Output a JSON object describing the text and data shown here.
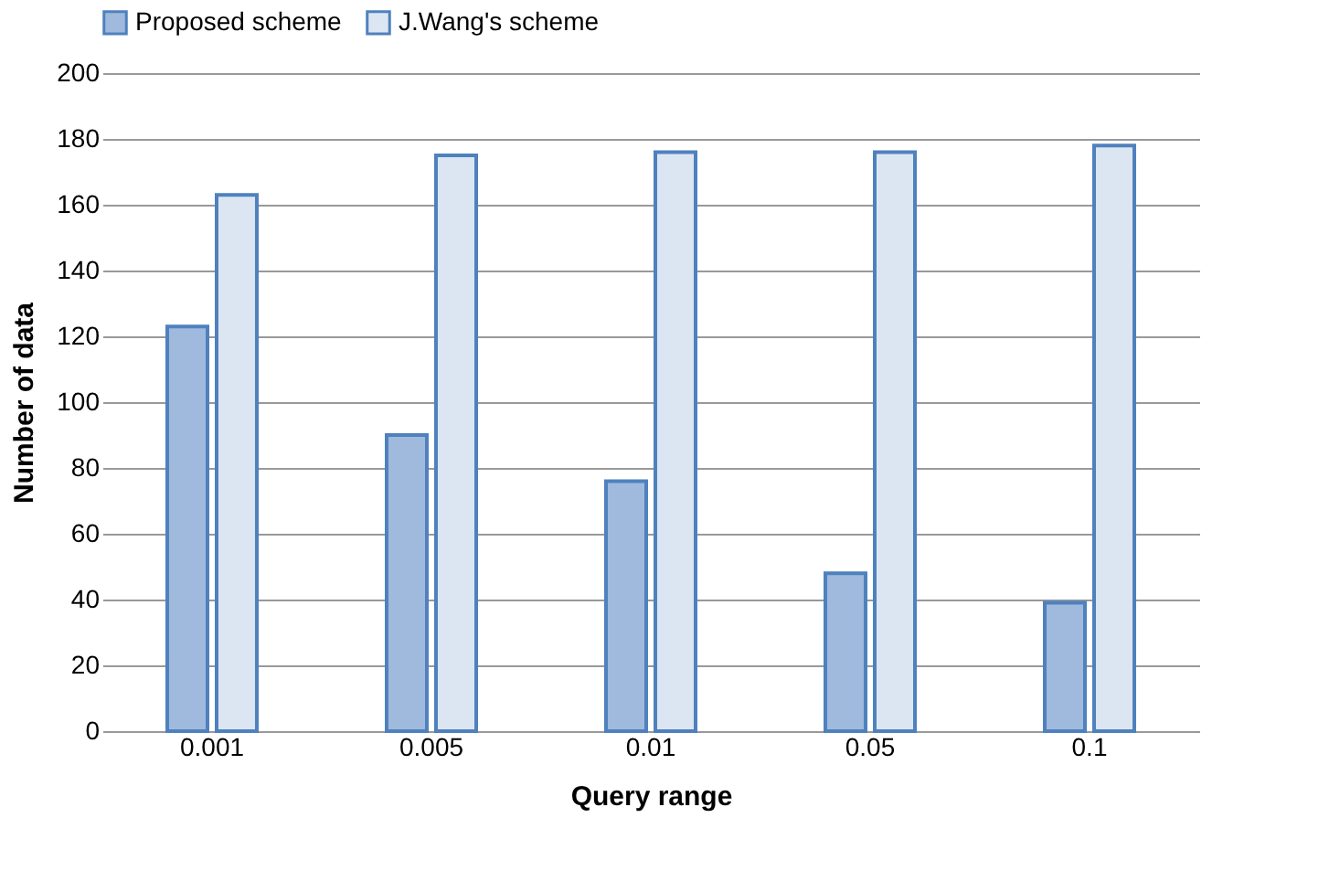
{
  "chart_data": {
    "type": "bar",
    "xlabel": "Query range",
    "ylabel": "Number of data",
    "categories": [
      "0.001",
      "0.005",
      "0.01",
      "0.05",
      "0.1"
    ],
    "series": [
      {
        "name": "Proposed scheme",
        "color": "#9fbadd",
        "values": [
          123,
          90,
          76,
          48,
          39
        ]
      },
      {
        "name": "J.Wang's scheme",
        "color": "#dce6f2",
        "values": [
          163,
          175,
          176,
          176,
          178
        ]
      }
    ],
    "ylim": [
      0,
      200
    ],
    "yticks": [
      0,
      20,
      40,
      60,
      80,
      100,
      120,
      140,
      160,
      180,
      200
    ],
    "grid": "y",
    "legend": "top"
  }
}
